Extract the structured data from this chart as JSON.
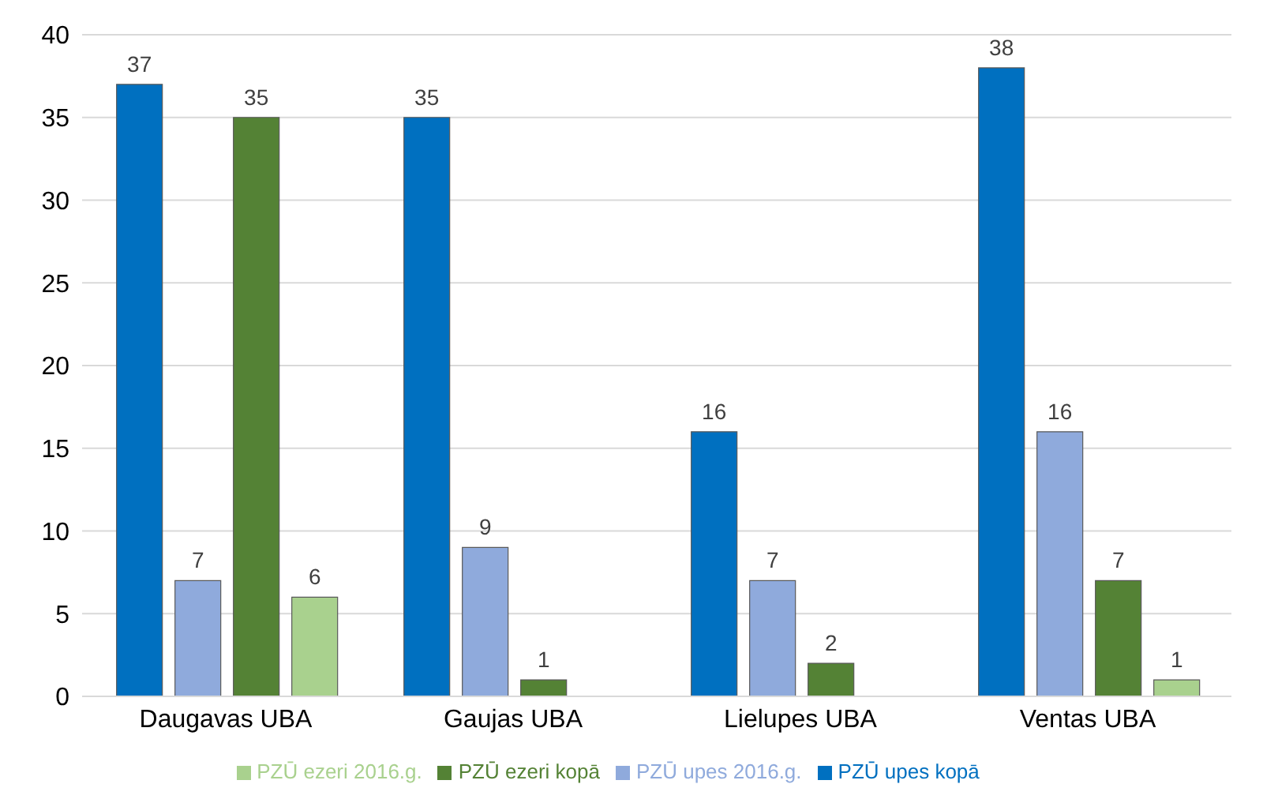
{
  "chart_data": {
    "type": "bar",
    "categories": [
      "Daugavas UBA",
      "Gaujas UBA",
      "Lielupes UBA",
      "Ventas UBA"
    ],
    "series": [
      {
        "name": "PZŪ upes kopā",
        "color": "#0070c0",
        "values": [
          37,
          35,
          16,
          38
        ]
      },
      {
        "name": "PZŪ upes 2016.g.",
        "color": "#8faadc",
        "values": [
          7,
          9,
          7,
          16
        ]
      },
      {
        "name": "PZŪ ezeri kopā",
        "color": "#548235",
        "values": [
          35,
          1,
          2,
          7
        ]
      },
      {
        "name": "PZŪ ezeri 2016.g.",
        "color": "#a9d18e",
        "values": [
          6,
          null,
          null,
          1
        ]
      }
    ],
    "ylim": [
      0,
      40
    ],
    "yticks": [
      0,
      5,
      10,
      15,
      20,
      25,
      30,
      35,
      40
    ],
    "grid": "y",
    "legend": "bottom",
    "data_labels": true
  }
}
